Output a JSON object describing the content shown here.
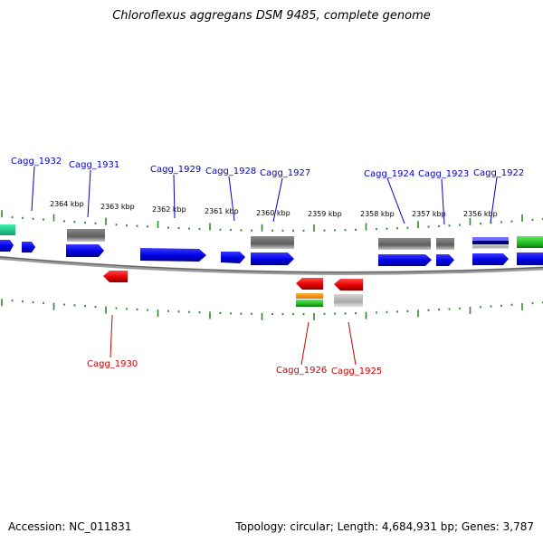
{
  "title": "Chloroflexus aggregans DSM 9485, complete genome",
  "footer": {
    "accession": "Accession: NC_011831",
    "summary": "Topology: circular; Length: 4,684,931 bp; Genes: 3,787"
  },
  "colors": {
    "forward_gene": "#0000ee",
    "reverse_gene": "#ee0000",
    "gray_feature": "#6e6e6e",
    "tick": "#2e8b2e",
    "backbone": "#888888",
    "label_forward": "#0000cc",
    "label_reverse": "#cc0000"
  },
  "scale_labels": [
    "2364 kbp",
    "2363 kbp",
    "2362 kbp",
    "2361 kbp",
    "2360 kbp",
    "2359 kbp",
    "2358 kbp",
    "2357 kbp",
    "2356 kbp"
  ],
  "gene_labels_top": [
    "Cagg_1932",
    "Cagg_1931",
    "Cagg_1929",
    "Cagg_1928",
    "Cagg_1927",
    "Cagg_1924",
    "Cagg_1923",
    "Cagg_1922"
  ],
  "gene_labels_bottom": [
    "Cagg_1930",
    "Cagg_1926",
    "Cagg_1925"
  ]
}
